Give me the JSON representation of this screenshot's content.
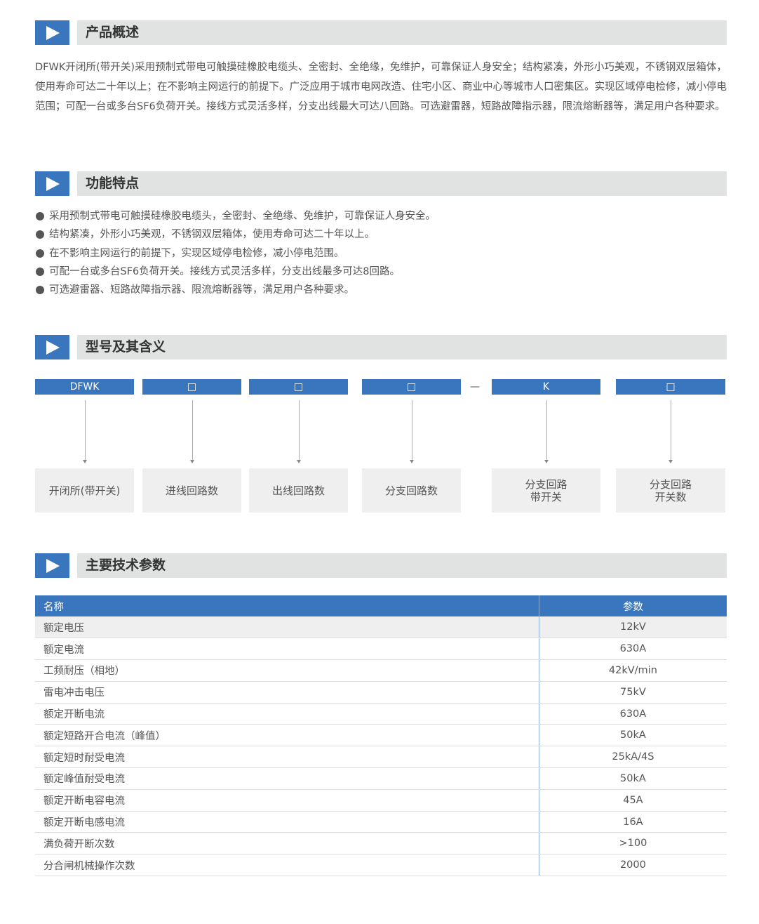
{
  "sections": {
    "overview": "产品概述",
    "features": "功能特点",
    "model": "型号及其含义",
    "params": "主要技术参数"
  },
  "overview_text": "DFWK开闭所(带开关)采用预制式带电可触摸硅橡胶电缆头、全密封、全绝缘，免维护，可靠保证人身安全；结构紧凑，外形小巧美观，不锈钢双层箱体，使用寿命可达二十年以上；在不影响主网运行的前提下。广泛应用于城市电网改造、住宅小区、商业中心等城市人口密集区。实现区域停电检修，减小停电范围；可配一台或多台SF6负荷开关。接线方式灵活多样，分支出线最大可达八回路。可选避雷器，短路故障指示器，限流熔断器等，满足用户各种要求。",
  "features": [
    "采用预制式带电可触摸硅橡胶电缆头，全密封、全绝缘、免维护，可靠保证人身安全。",
    "结构紧凑，外形小巧美观，不锈钢双层箱体，使用寿命可达二十年以上。",
    "在不影响主网运行的前提下，实现区域停电检修，减小停电范围。",
    "可配一台或多台SF6负荷开关。接线方式灵活多样，分支出线最多可达8回路。",
    "可选避雷器、短路故障指示器、限流熔断器等，满足用户各种要求。"
  ],
  "model": {
    "codes": [
      "DFWK",
      "□",
      "□",
      "□",
      "K",
      "□"
    ],
    "dash": "—",
    "meanings": [
      "开闭所(带开关)",
      "进线回路数",
      "出线回路数",
      "分支回路数",
      "分支回路\n带开关",
      "分支回路\n开关数"
    ]
  },
  "table": {
    "headers": [
      "名称",
      "参数"
    ],
    "rows": [
      [
        "额定电压",
        "12kV"
      ],
      [
        "额定电流",
        "630A"
      ],
      [
        "工频耐压（相地）",
        "42kV/min"
      ],
      [
        "雷电冲击电压",
        "75kV"
      ],
      [
        "额定开断电流",
        "630A"
      ],
      [
        "额定短路开合电流（峰值）",
        "50kA"
      ],
      [
        "额定短时耐受电流",
        "25kA/4S"
      ],
      [
        "额定峰值耐受电流",
        "50kA"
      ],
      [
        "额定开断电容电流",
        "45A"
      ],
      [
        "额定开断电感电流",
        "16A"
      ],
      [
        "满负荷开断次数",
        ">100"
      ],
      [
        "分合闸机械操作次数",
        "2000"
      ]
    ]
  },
  "colors": {
    "accent": "#3a76bd",
    "header_bar": "#e1e3e3",
    "box": "#efefef"
  }
}
